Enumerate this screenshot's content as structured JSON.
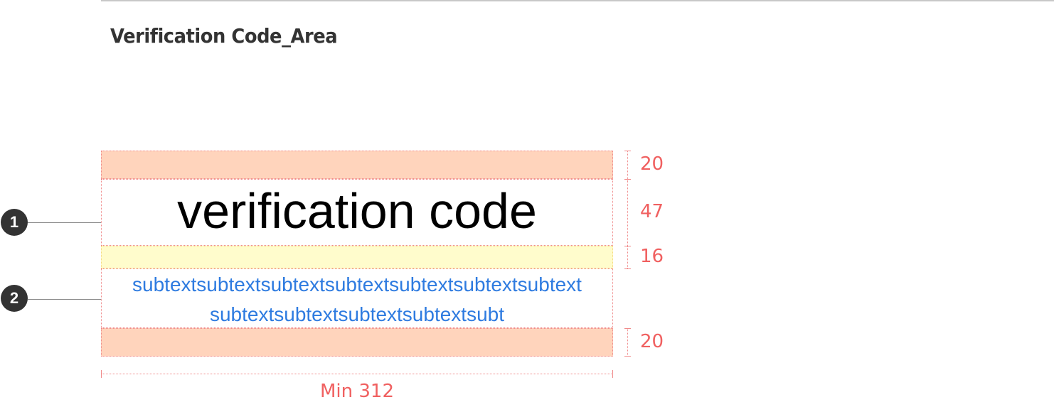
{
  "section_title": "Verification Code_Area",
  "content": {
    "code_text": "verification code",
    "subtext": "subtextsubtextsubtextsubtextsubtextsubtextsubtextsubtextsubtextsubtextsubtextsubt"
  },
  "markers": [
    "1",
    "2"
  ],
  "dimensions": {
    "top_padding": "20",
    "title_height": "47",
    "gap": "16",
    "bottom_padding": "20",
    "width": "Min 312"
  },
  "colors": {
    "padding_fill": "#ffd4bc",
    "gap_fill": "#fffccc",
    "subtext": "#2e7be0",
    "dimension": "#f06060",
    "marker": "#333333"
  }
}
